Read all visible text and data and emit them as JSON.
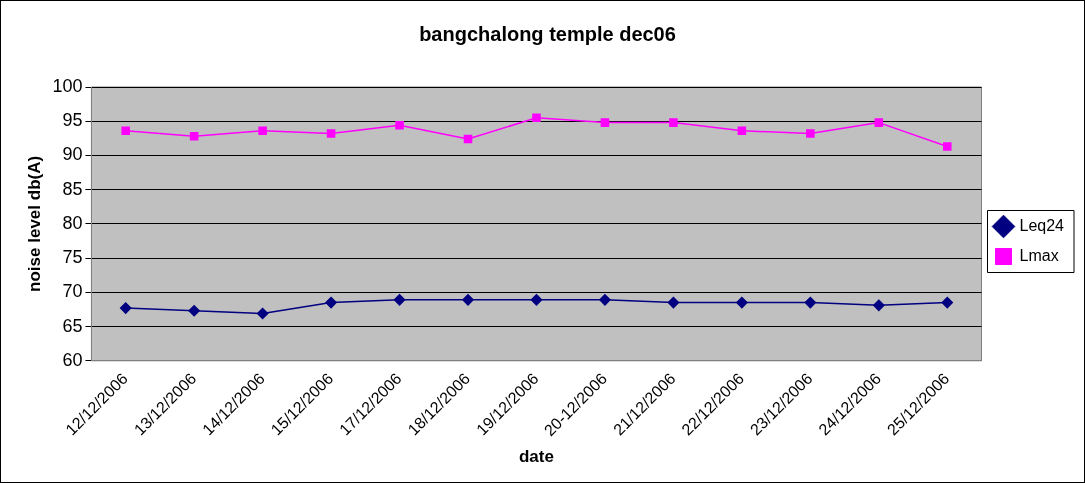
{
  "chart_data": {
    "type": "line",
    "title": "bangchalong temple dec06",
    "xlabel": "date",
    "ylabel": "noise level db(A)",
    "categories": [
      "12/12/2006",
      "13/12/2006",
      "14/12/2006",
      "15/12/2006",
      "17/12/2006",
      "18/12/2006",
      "19/12/2006",
      "20-12/2006",
      "21/12/2006",
      "22/12/2006",
      "23/12/2006",
      "24/12/2006",
      "25/12/2006"
    ],
    "series": [
      {
        "name": "Leq24",
        "color": "#000080",
        "marker": "diamond",
        "values": [
          67.7,
          67.3,
          66.9,
          68.5,
          68.9,
          68.9,
          68.9,
          68.9,
          68.5,
          68.5,
          68.5,
          68.1,
          68.5
        ]
      },
      {
        "name": "Lmax",
        "color": "#ff00ff",
        "marker": "square",
        "values": [
          93.6,
          92.8,
          93.6,
          93.2,
          94.4,
          92.4,
          95.5,
          94.8,
          94.8,
          93.6,
          93.2,
          94.8,
          91.3
        ]
      }
    ],
    "ylim": [
      60,
      100
    ],
    "yticks": [
      60,
      65,
      70,
      75,
      80,
      85,
      90,
      95,
      100
    ],
    "grid": "y",
    "legend": "right"
  }
}
